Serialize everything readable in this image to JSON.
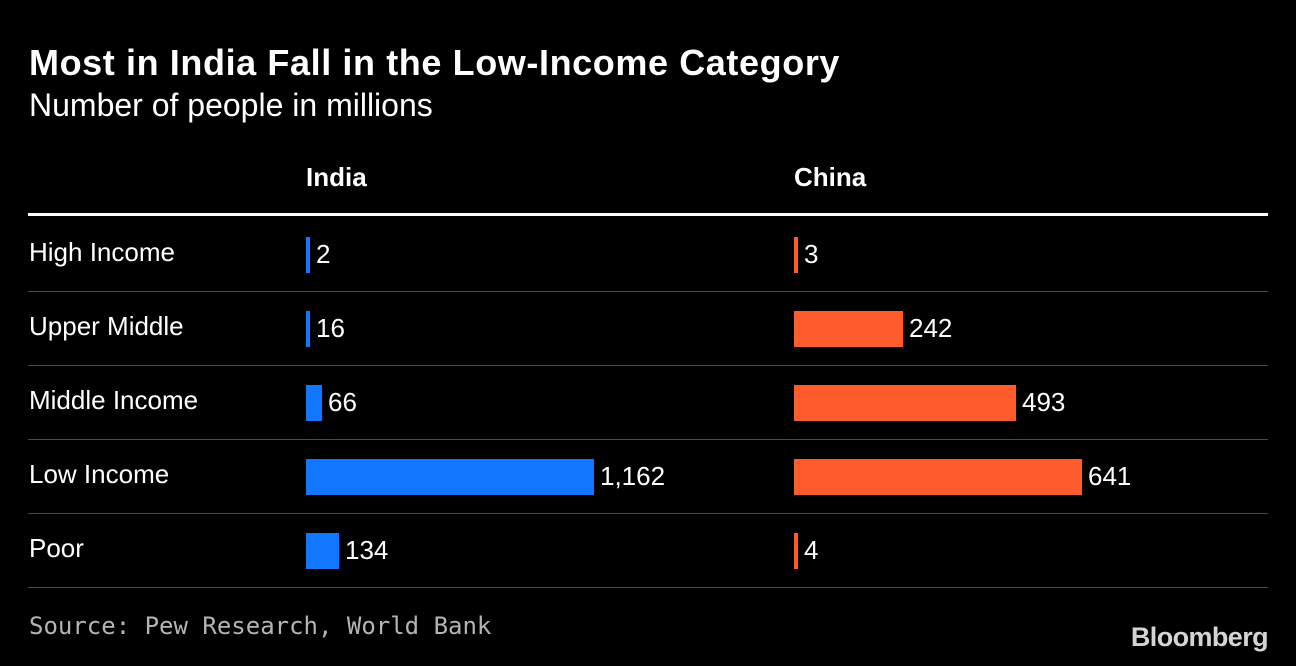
{
  "title": "Most in India Fall in the Low-Income Category",
  "subtitle": "Number of people in millions",
  "source": "Source: Pew Research, World Bank",
  "brand": "Bloomberg",
  "colors": {
    "india": "#1177ff",
    "china": "#ff5c2e",
    "background": "#000000"
  },
  "chart_data": {
    "type": "bar",
    "orientation": "horizontal",
    "title": "Most in India Fall in the Low-Income Category",
    "subtitle": "Number of people in millions",
    "unit": "millions of people",
    "categories": [
      "High Income",
      "Upper Middle",
      "Middle Income",
      "Low Income",
      "Poor"
    ],
    "series": [
      {
        "name": "India",
        "values": [
          2,
          16,
          66,
          1162,
          134
        ],
        "labels": [
          "2",
          "16",
          "66",
          "1,162",
          "134"
        ]
      },
      {
        "name": "China",
        "values": [
          3,
          242,
          493,
          641,
          4
        ],
        "labels": [
          "3",
          "242",
          "493",
          "641",
          "4"
        ]
      }
    ],
    "layout": "small-multiples, one panel per series",
    "grid": false,
    "legend": "column headers"
  }
}
